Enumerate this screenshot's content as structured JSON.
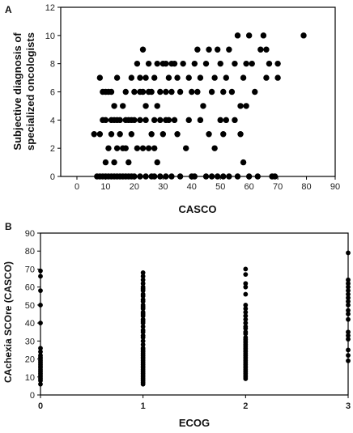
{
  "chart_data": [
    {
      "panel_label": "A",
      "type": "scatter",
      "xlabel": "CASCO",
      "ylabel_lines": [
        "Subjective diagnosis of",
        "specialized oncologists"
      ],
      "xlim": [
        0,
        90
      ],
      "ylim": [
        0,
        12
      ],
      "xticks": [
        0,
        10,
        20,
        30,
        40,
        50,
        60,
        70,
        80,
        90
      ],
      "yticks": [
        0,
        2,
        4,
        6,
        8,
        10,
        12
      ],
      "grid": false,
      "marker_color": "#000000",
      "points": [
        [
          6,
          3
        ],
        [
          7,
          0
        ],
        [
          8,
          0
        ],
        [
          8,
          3
        ],
        [
          8,
          7
        ],
        [
          9,
          0
        ],
        [
          9,
          4
        ],
        [
          9,
          6
        ],
        [
          10,
          0
        ],
        [
          10,
          1
        ],
        [
          10,
          4
        ],
        [
          10,
          6
        ],
        [
          11,
          0
        ],
        [
          11,
          2
        ],
        [
          11,
          6
        ],
        [
          12,
          0
        ],
        [
          12,
          3
        ],
        [
          12,
          4
        ],
        [
          12,
          6
        ],
        [
          13,
          0
        ],
        [
          13,
          1
        ],
        [
          13,
          4
        ],
        [
          13,
          5
        ],
        [
          14,
          0
        ],
        [
          14,
          2
        ],
        [
          14,
          4
        ],
        [
          14,
          7
        ],
        [
          15,
          0
        ],
        [
          15,
          3
        ],
        [
          15,
          4
        ],
        [
          16,
          0
        ],
        [
          16,
          2
        ],
        [
          16,
          5
        ],
        [
          17,
          0
        ],
        [
          17,
          2
        ],
        [
          17,
          4
        ],
        [
          17,
          6
        ],
        [
          18,
          0
        ],
        [
          18,
          1
        ],
        [
          18,
          4
        ],
        [
          19,
          0
        ],
        [
          19,
          3
        ],
        [
          19,
          4
        ],
        [
          19,
          7
        ],
        [
          20,
          0
        ],
        [
          20,
          4
        ],
        [
          20,
          6
        ],
        [
          21,
          2
        ],
        [
          21,
          8
        ],
        [
          22,
          0
        ],
        [
          22,
          4
        ],
        [
          22,
          6
        ],
        [
          22,
          7
        ],
        [
          23,
          2
        ],
        [
          23,
          6
        ],
        [
          23,
          9
        ],
        [
          24,
          0
        ],
        [
          24,
          4
        ],
        [
          24,
          5
        ],
        [
          24,
          7
        ],
        [
          25,
          2
        ],
        [
          25,
          6
        ],
        [
          25,
          8
        ],
        [
          26,
          0
        ],
        [
          26,
          3
        ],
        [
          26,
          6
        ],
        [
          27,
          0
        ],
        [
          27,
          2
        ],
        [
          27,
          4
        ],
        [
          27,
          7
        ],
        [
          28,
          1
        ],
        [
          28,
          5
        ],
        [
          28,
          8
        ],
        [
          29,
          0
        ],
        [
          29,
          4
        ],
        [
          29,
          6
        ],
        [
          30,
          3
        ],
        [
          30,
          8
        ],
        [
          31,
          0
        ],
        [
          31,
          4
        ],
        [
          31,
          6
        ],
        [
          31,
          8
        ],
        [
          32,
          4
        ],
        [
          32,
          7
        ],
        [
          33,
          0
        ],
        [
          33,
          6
        ],
        [
          33,
          8
        ],
        [
          34,
          4
        ],
        [
          34,
          8
        ],
        [
          35,
          3
        ],
        [
          35,
          7
        ],
        [
          36,
          0
        ],
        [
          36,
          6
        ],
        [
          37,
          8
        ],
        [
          38,
          2
        ],
        [
          39,
          4
        ],
        [
          39,
          7
        ],
        [
          40,
          0
        ],
        [
          40,
          6
        ],
        [
          41,
          0
        ],
        [
          41,
          8
        ],
        [
          42,
          6
        ],
        [
          42,
          9
        ],
        [
          43,
          4
        ],
        [
          43,
          7
        ],
        [
          44,
          5
        ],
        [
          45,
          0
        ],
        [
          45,
          8
        ],
        [
          46,
          3
        ],
        [
          46,
          9
        ],
        [
          47,
          0
        ],
        [
          47,
          6
        ],
        [
          48,
          2
        ],
        [
          48,
          7
        ],
        [
          49,
          0
        ],
        [
          49,
          9
        ],
        [
          50,
          4
        ],
        [
          50,
          8
        ],
        [
          51,
          0
        ],
        [
          51,
          3
        ],
        [
          51,
          6
        ],
        [
          52,
          4
        ],
        [
          52,
          7
        ],
        [
          53,
          0
        ],
        [
          53,
          9
        ],
        [
          54,
          6
        ],
        [
          55,
          4
        ],
        [
          55,
          8
        ],
        [
          56,
          0
        ],
        [
          56,
          10
        ],
        [
          57,
          3
        ],
        [
          57,
          5
        ],
        [
          58,
          1
        ],
        [
          58,
          7
        ],
        [
          59,
          5
        ],
        [
          59,
          8
        ],
        [
          60,
          0
        ],
        [
          60,
          10
        ],
        [
          61,
          8
        ],
        [
          62,
          6
        ],
        [
          63,
          0
        ],
        [
          64,
          9
        ],
        [
          65,
          10
        ],
        [
          66,
          7
        ],
        [
          66,
          9
        ],
        [
          67,
          8
        ],
        [
          68,
          0
        ],
        [
          69,
          0
        ],
        [
          70,
          7
        ],
        [
          70,
          8
        ],
        [
          79,
          10
        ]
      ]
    },
    {
      "panel_label": "B",
      "type": "scatter",
      "xlabel": "ECOG",
      "ylabel": "CAchexia SCOre (CASCO)",
      "xlim": [
        0,
        3
      ],
      "ylim": [
        0,
        90
      ],
      "xticks": [
        0,
        1,
        2,
        3
      ],
      "yticks": [
        0,
        10,
        20,
        30,
        40,
        50,
        60,
        70,
        80,
        90
      ],
      "grid": false,
      "marker_color": "#000000",
      "points": [
        [
          0,
          6
        ],
        [
          0,
          8
        ],
        [
          0,
          9
        ],
        [
          0,
          10
        ],
        [
          0,
          11
        ],
        [
          0,
          12
        ],
        [
          0,
          13
        ],
        [
          0,
          14
        ],
        [
          0,
          15
        ],
        [
          0,
          16
        ],
        [
          0,
          17
        ],
        [
          0,
          18
        ],
        [
          0,
          19
        ],
        [
          0,
          20
        ],
        [
          0,
          21
        ],
        [
          0,
          22
        ],
        [
          0,
          24
        ],
        [
          0,
          26
        ],
        [
          0,
          40
        ],
        [
          0,
          50
        ],
        [
          0,
          58
        ],
        [
          0,
          66
        ],
        [
          0,
          69
        ],
        [
          1,
          6
        ],
        [
          1,
          7
        ],
        [
          1,
          8
        ],
        [
          1,
          9
        ],
        [
          1,
          10
        ],
        [
          1,
          11
        ],
        [
          1,
          12
        ],
        [
          1,
          13
        ],
        [
          1,
          14
        ],
        [
          1,
          15
        ],
        [
          1,
          16
        ],
        [
          1,
          17
        ],
        [
          1,
          18
        ],
        [
          1,
          19
        ],
        [
          1,
          20
        ],
        [
          1,
          21
        ],
        [
          1,
          22
        ],
        [
          1,
          23
        ],
        [
          1,
          24
        ],
        [
          1,
          25
        ],
        [
          1,
          26
        ],
        [
          1,
          28
        ],
        [
          1,
          30
        ],
        [
          1,
          32
        ],
        [
          1,
          33
        ],
        [
          1,
          35
        ],
        [
          1,
          36
        ],
        [
          1,
          38
        ],
        [
          1,
          40
        ],
        [
          1,
          41
        ],
        [
          1,
          42
        ],
        [
          1,
          44
        ],
        [
          1,
          45
        ],
        [
          1,
          46
        ],
        [
          1,
          48
        ],
        [
          1,
          49
        ],
        [
          1,
          50
        ],
        [
          1,
          52
        ],
        [
          1,
          53
        ],
        [
          1,
          55
        ],
        [
          1,
          56
        ],
        [
          1,
          58
        ],
        [
          1,
          59
        ],
        [
          1,
          60
        ],
        [
          1,
          62
        ],
        [
          1,
          64
        ],
        [
          1,
          66
        ],
        [
          1,
          68
        ],
        [
          2,
          9
        ],
        [
          2,
          10
        ],
        [
          2,
          11
        ],
        [
          2,
          12
        ],
        [
          2,
          13
        ],
        [
          2,
          14
        ],
        [
          2,
          15
        ],
        [
          2,
          16
        ],
        [
          2,
          17
        ],
        [
          2,
          18
        ],
        [
          2,
          19
        ],
        [
          2,
          20
        ],
        [
          2,
          21
        ],
        [
          2,
          22
        ],
        [
          2,
          23
        ],
        [
          2,
          24
        ],
        [
          2,
          25
        ],
        [
          2,
          26
        ],
        [
          2,
          27
        ],
        [
          2,
          28
        ],
        [
          2,
          29
        ],
        [
          2,
          30
        ],
        [
          2,
          31
        ],
        [
          2,
          32
        ],
        [
          2,
          34
        ],
        [
          2,
          35
        ],
        [
          2,
          37
        ],
        [
          2,
          38
        ],
        [
          2,
          40
        ],
        [
          2,
          42
        ],
        [
          2,
          44
        ],
        [
          2,
          46
        ],
        [
          2,
          48
        ],
        [
          2,
          50
        ],
        [
          2,
          56
        ],
        [
          2,
          60
        ],
        [
          2,
          62
        ],
        [
          2,
          67
        ],
        [
          2,
          70
        ],
        [
          3,
          19
        ],
        [
          3,
          22
        ],
        [
          3,
          25
        ],
        [
          3,
          31
        ],
        [
          3,
          33
        ],
        [
          3,
          35
        ],
        [
          3,
          42
        ],
        [
          3,
          45
        ],
        [
          3,
          47
        ],
        [
          3,
          50
        ],
        [
          3,
          52
        ],
        [
          3,
          54
        ],
        [
          3,
          56
        ],
        [
          3,
          58
        ],
        [
          3,
          60
        ],
        [
          3,
          62
        ],
        [
          3,
          64
        ],
        [
          3,
          79
        ]
      ]
    }
  ]
}
